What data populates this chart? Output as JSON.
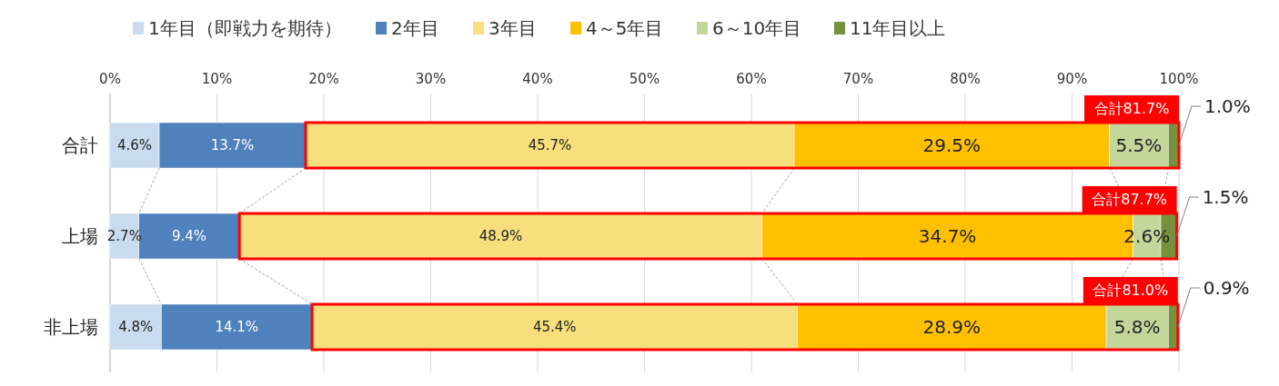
{
  "chart_data": {
    "type": "bar",
    "orientation": "horizontal",
    "stacked": true,
    "categories": [
      "合計",
      "上場",
      "非上場"
    ],
    "series": [
      {
        "name": "1年目（即戦力を期待）",
        "color": "#c9dcef",
        "values": [
          4.6,
          2.7,
          4.8
        ]
      },
      {
        "name": "2年目",
        "color": "#4f81bd",
        "values": [
          13.7,
          9.4,
          14.1
        ]
      },
      {
        "name": "3年目",
        "color": "#f6df7c",
        "values": [
          45.7,
          48.9,
          45.4
        ]
      },
      {
        "name": "4～5年目",
        "color": "#ffc000",
        "values": [
          29.5,
          34.7,
          28.9
        ]
      },
      {
        "name": "6～10年目",
        "color": "#c4d79b",
        "values": [
          5.5,
          2.6,
          5.8
        ]
      },
      {
        "name": "11年目以上",
        "color": "#76923c",
        "values": [
          1.0,
          1.5,
          0.9
        ]
      }
    ],
    "xlim": [
      0,
      100
    ],
    "xticks": [
      {
        "value": 0,
        "label": "0%"
      },
      {
        "value": 10,
        "label": "10%"
      },
      {
        "value": 20,
        "label": "20%"
      },
      {
        "value": 30,
        "label": "30%"
      },
      {
        "value": 40,
        "label": "40%"
      },
      {
        "value": 50,
        "label": "50%"
      },
      {
        "value": 60,
        "label": "60%"
      },
      {
        "value": 70,
        "label": "70%"
      },
      {
        "value": 80,
        "label": "80%"
      },
      {
        "value": 90,
        "label": "90%"
      },
      {
        "value": 100,
        "label": "100%"
      }
    ],
    "value_labels": [
      [
        "4.6%",
        "2.7%",
        "4.8%"
      ],
      [
        "13.7%",
        "9.4%",
        "14.1%"
      ],
      [
        "45.7%",
        "48.9%",
        "45.4%"
      ],
      [
        "29.5%",
        "34.7%",
        "28.9%"
      ],
      [
        "5.5%",
        "2.6%",
        "5.8%"
      ],
      [
        "1.0%",
        "1.5%",
        "0.9%"
      ]
    ],
    "annotations": [
      "合計81.7%",
      "合計87.7%",
      "合計81.0%"
    ],
    "grid": "x",
    "legend": "top"
  }
}
